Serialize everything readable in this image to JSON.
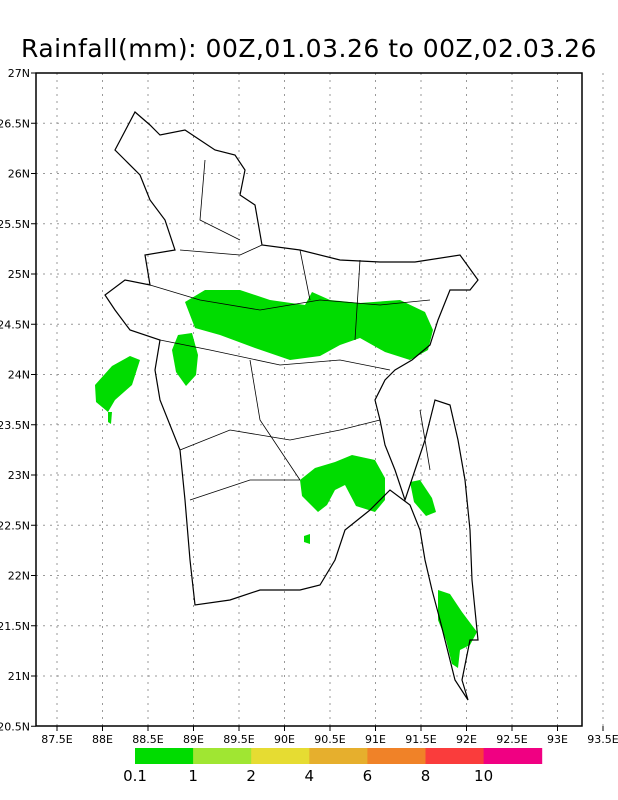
{
  "title": "Rainfall(mm): 00Z,01.03.26 to 00Z,02.03.26",
  "axes": {
    "lon_ticks": [
      "87.5E",
      "88E",
      "88.5E",
      "89E",
      "89.5E",
      "90E",
      "90.5E",
      "91E",
      "91.5E",
      "92E",
      "92.5E",
      "93E",
      "93.5E"
    ],
    "lat_ticks": [
      "27N",
      "26.5N",
      "26N",
      "25.5N",
      "25N",
      "24.5N",
      "24N",
      "23.5N",
      "23N",
      "22.5N",
      "22N",
      "21.5N",
      "21N",
      "20.5N"
    ],
    "grid": "dotted"
  },
  "colorbar": {
    "labels": [
      "0.1",
      "1",
      "2",
      "4",
      "6",
      "8",
      "10"
    ],
    "colors": [
      "#00dc00",
      "#a0e632",
      "#e6dc32",
      "#e6af2d",
      "#f08228",
      "#fa3c3c",
      "#f00082"
    ]
  },
  "rain_color": "#00dc00"
}
